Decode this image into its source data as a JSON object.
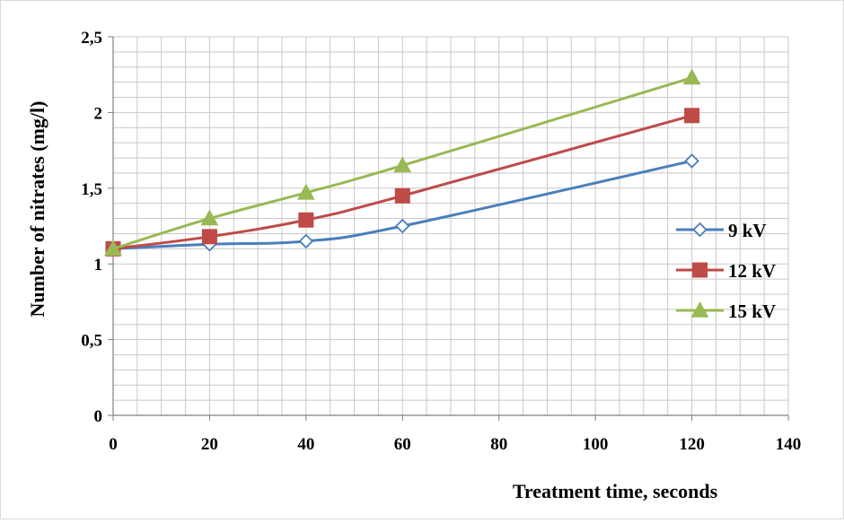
{
  "chart_data": {
    "type": "line",
    "title": "",
    "xlabel": "Treatment time, seconds",
    "ylabel": "Number of nitrates (mg/l)",
    "xlim": [
      0,
      140
    ],
    "ylim": [
      0,
      2.5
    ],
    "x_ticks": [
      "0",
      "20",
      "40",
      "60",
      "80",
      "100",
      "120",
      "140"
    ],
    "y_ticks": [
      "0",
      "0,5",
      "1",
      "1,5",
      "2",
      "2,5"
    ],
    "grid": true,
    "legend_position": "right",
    "x": [
      0,
      20,
      40,
      60,
      120
    ],
    "series": [
      {
        "name": "9 kV",
        "color": "#4a7ebb",
        "marker": "open-diamond",
        "values": [
          1.1,
          1.13,
          1.15,
          1.25,
          1.68
        ]
      },
      {
        "name": "12 kV",
        "color": "#be4b48",
        "marker": "filled-square",
        "values": [
          1.1,
          1.18,
          1.29,
          1.45,
          1.98
        ]
      },
      {
        "name": "15 kV",
        "color": "#98b954",
        "marker": "filled-triangle",
        "values": [
          1.1,
          1.3,
          1.47,
          1.65,
          2.23
        ]
      }
    ]
  }
}
